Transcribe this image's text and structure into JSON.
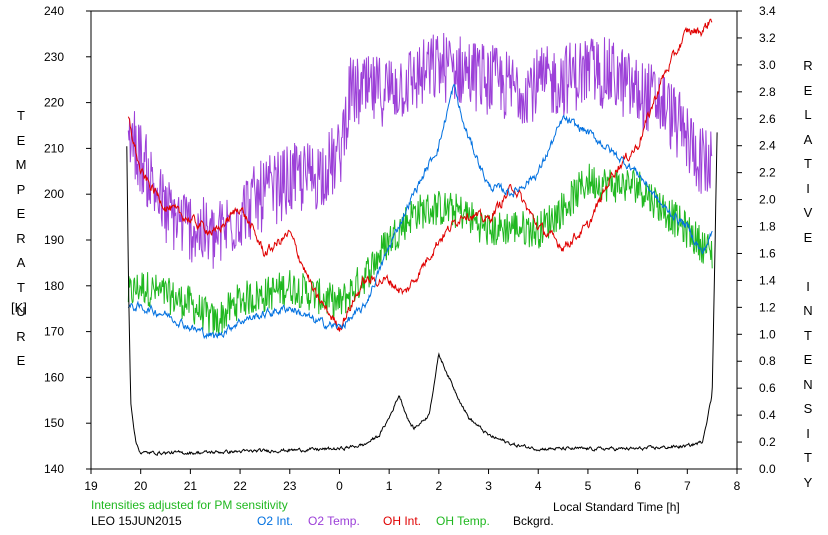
{
  "chart_data": {
    "type": "line",
    "ylabel_left_letters": [
      "T",
      "E",
      "M",
      "P",
      "E",
      "R",
      "A",
      "T",
      "U",
      "R",
      "E"
    ],
    "ylabel_left_unit": "[K]",
    "ylabel_right_letters": [
      "R",
      "E",
      "L",
      "A",
      "T",
      "I",
      "V",
      "E",
      "",
      "I",
      "N",
      "T",
      "E",
      "N",
      "S",
      "I",
      "T",
      "Y"
    ],
    "xlabel": "Local Standard Time [h]",
    "note": "Intensities adjusted for PM sensitivity",
    "site_date": "LEO 15JUN2015",
    "xlim": [
      19,
      32
    ],
    "x_tick_labels": [
      "19",
      "20",
      "21",
      "22",
      "23",
      "0",
      "1",
      "2",
      "3",
      "4",
      "5",
      "6",
      "7",
      "8"
    ],
    "ylim_left": [
      140,
      240
    ],
    "y_left_ticks": [
      140,
      150,
      160,
      170,
      180,
      190,
      200,
      210,
      220,
      230,
      240
    ],
    "ylim_right": [
      0,
      3.4
    ],
    "y_right_ticks": [
      "0.0",
      "0.2",
      "0.4",
      "0.6",
      "0.8",
      "1.0",
      "1.2",
      "1.4",
      "1.6",
      "1.8",
      "2.0",
      "2.2",
      "2.4",
      "2.6",
      "2.8",
      "3.0",
      "3.2",
      "3.4"
    ],
    "series": [
      {
        "name": "O2 Int.",
        "axis": "right",
        "color": "#0070e0",
        "noise": 0.025,
        "x": [
          19.75,
          20.0,
          20.5,
          21.0,
          21.5,
          22.0,
          22.5,
          23.0,
          23.5,
          24.0,
          24.5,
          25.0,
          25.5,
          26.0,
          26.3,
          26.5,
          27.0,
          27.5,
          28.0,
          28.5,
          29.0,
          29.5,
          30.0,
          30.5,
          31.0,
          31.3,
          31.5
        ],
        "y": [
          1.2,
          1.2,
          1.15,
          1.05,
          0.98,
          1.1,
          1.15,
          1.2,
          1.1,
          1.05,
          1.2,
          1.65,
          2.05,
          2.4,
          2.85,
          2.55,
          2.1,
          2.05,
          2.2,
          2.6,
          2.5,
          2.35,
          2.2,
          1.95,
          1.8,
          1.6,
          1.75
        ]
      },
      {
        "name": "O2 Temp.",
        "axis": "left",
        "color": "#9c40d8",
        "noise": 8,
        "x": [
          19.75,
          20.0,
          20.5,
          21.0,
          21.5,
          22.0,
          22.5,
          23.0,
          23.5,
          24.0,
          24.2,
          24.5,
          25.0,
          25.5,
          26.0,
          26.5,
          27.0,
          27.5,
          28.0,
          28.5,
          29.0,
          29.5,
          30.0,
          30.5,
          31.0,
          31.3,
          31.5
        ],
        "y": [
          214,
          208,
          196,
          193,
          190,
          196,
          200,
          203,
          204,
          208,
          222,
          222,
          223,
          225,
          228,
          227,
          225,
          223,
          224,
          225,
          227,
          226,
          222,
          220,
          212,
          207,
          206
        ]
      },
      {
        "name": "OH Int.",
        "axis": "right",
        "color": "#e00000",
        "noise": 0.03,
        "x": [
          19.75,
          20.0,
          20.5,
          21.0,
          21.5,
          22.0,
          22.5,
          23.0,
          23.5,
          24.0,
          24.5,
          25.0,
          25.3,
          25.5,
          26.0,
          26.5,
          27.0,
          27.5,
          28.0,
          28.5,
          29.0,
          29.5,
          30.0,
          30.5,
          31.0,
          31.3,
          31.5
        ],
        "y": [
          2.6,
          2.2,
          1.95,
          1.85,
          1.75,
          1.95,
          1.6,
          1.75,
          1.3,
          1.05,
          1.4,
          1.4,
          1.3,
          1.4,
          1.7,
          1.9,
          1.85,
          2.1,
          1.8,
          1.65,
          1.8,
          2.2,
          2.4,
          2.9,
          3.25,
          3.25,
          3.35
        ]
      },
      {
        "name": "OH Temp.",
        "axis": "left",
        "color": "#20b820",
        "noise": 4,
        "x": [
          19.75,
          20.0,
          20.5,
          21.0,
          21.5,
          22.0,
          22.5,
          23.0,
          23.5,
          24.0,
          24.5,
          25.0,
          25.5,
          26.0,
          26.5,
          27.0,
          27.5,
          28.0,
          28.5,
          29.0,
          29.5,
          30.0,
          30.5,
          31.0,
          31.5
        ],
        "y": [
          178,
          180,
          178,
          176,
          172,
          177,
          178,
          180,
          178,
          176,
          182,
          190,
          196,
          197,
          196,
          192,
          193,
          192,
          197,
          203,
          202,
          202,
          197,
          192,
          187
        ]
      },
      {
        "name": "Bckgrd.",
        "axis": "right",
        "color": "#000000",
        "noise": 0.01,
        "x": [
          19.72,
          19.75,
          19.8,
          19.9,
          20.0,
          20.5,
          21.0,
          22.0,
          23.0,
          24.0,
          24.5,
          24.8,
          25.0,
          25.2,
          25.4,
          25.5,
          25.8,
          26.0,
          26.3,
          26.6,
          27.0,
          27.5,
          28.0,
          29.0,
          30.0,
          31.0,
          31.3,
          31.5,
          31.6
        ],
        "y": [
          2.4,
          1.5,
          0.5,
          0.2,
          0.12,
          0.12,
          0.12,
          0.13,
          0.14,
          0.15,
          0.18,
          0.25,
          0.38,
          0.55,
          0.35,
          0.3,
          0.4,
          0.85,
          0.6,
          0.38,
          0.25,
          0.18,
          0.15,
          0.15,
          0.15,
          0.17,
          0.2,
          0.55,
          2.5
        ]
      }
    ]
  }
}
